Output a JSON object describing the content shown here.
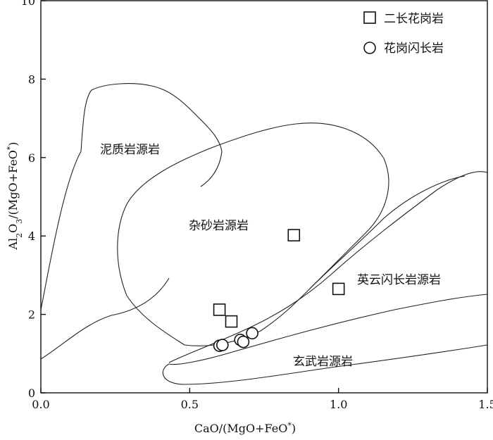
{
  "chart_data": {
    "type": "scatter",
    "title": "",
    "xlabel": "CaO/(MgO+FeO*)",
    "ylabel": "Al2O3/(MgO+FeO*)",
    "xlim": [
      0,
      1.5
    ],
    "ylim": [
      0,
      10
    ],
    "x_ticks": [
      "0.0",
      "0.5",
      "1.0",
      "1.5"
    ],
    "y_ticks": [
      "0",
      "2",
      "4",
      "6",
      "8",
      "10"
    ],
    "legend_position": "top-right",
    "regions": [
      {
        "label": "泥质岩源岩"
      },
      {
        "label": "杂砂岩源岩"
      },
      {
        "label": "英云闪长岩源岩"
      },
      {
        "label": "玄武岩源岩"
      }
    ],
    "series": [
      {
        "name": "二长花岗岩",
        "marker": "square",
        "points": [
          {
            "x": 0.6,
            "y": 2.12
          },
          {
            "x": 0.64,
            "y": 1.82
          },
          {
            "x": 0.85,
            "y": 4.02
          },
          {
            "x": 1.0,
            "y": 2.65
          }
        ]
      },
      {
        "name": "花岗闪长岩",
        "marker": "circle",
        "points": [
          {
            "x": 0.6,
            "y": 1.2
          },
          {
            "x": 0.61,
            "y": 1.22
          },
          {
            "x": 0.67,
            "y": 1.35
          },
          {
            "x": 0.68,
            "y": 1.3
          },
          {
            "x": 0.71,
            "y": 1.52
          }
        ]
      }
    ]
  }
}
